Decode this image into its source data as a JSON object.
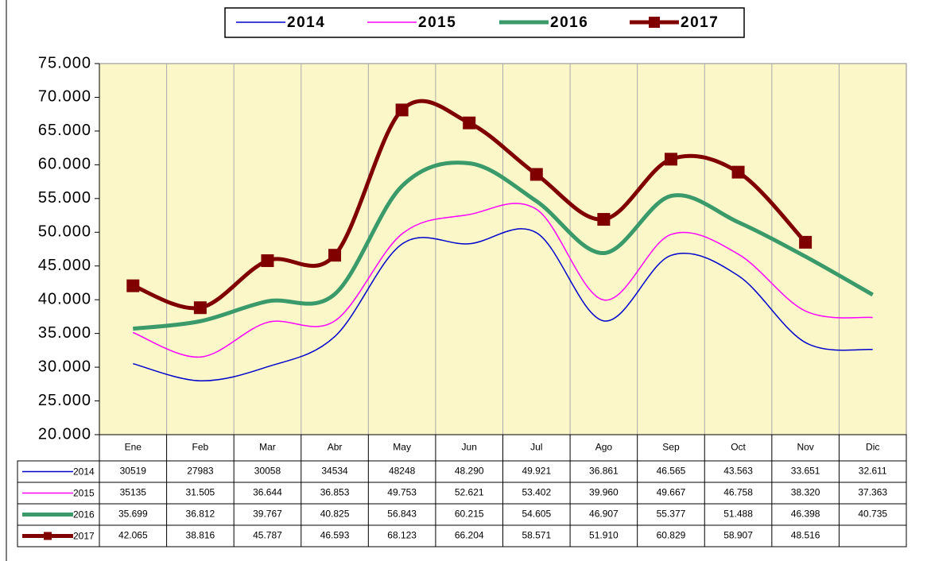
{
  "chart_data": {
    "type": "line",
    "categories": [
      "Ene",
      "Feb",
      "Mar",
      "Abr",
      "May",
      "Jun",
      "Jul",
      "Ago",
      "Sep",
      "Oct",
      "Nov",
      "Dic"
    ],
    "series": [
      {
        "name": "2014",
        "color": "#0000cc",
        "width": 1.5,
        "values": [
          30519,
          27983,
          30058,
          34534,
          48248,
          48290,
          49921,
          36861,
          46565,
          43563,
          33651,
          32611
        ],
        "value_labels": [
          "30519",
          "27983",
          "30058",
          "34534",
          "48248",
          "48.290",
          "49.921",
          "36.861",
          "46.565",
          "43.563",
          "33.651",
          "32.611"
        ]
      },
      {
        "name": "2015",
        "color": "#ff00ff",
        "width": 1.5,
        "values": [
          35135,
          31505,
          36644,
          36853,
          49753,
          52621,
          53402,
          39960,
          49667,
          46758,
          38320,
          37363
        ],
        "value_labels": [
          "35135",
          "31.505",
          "36.644",
          "36.853",
          "49.753",
          "52.621",
          "53.402",
          "39.960",
          "49.667",
          "46.758",
          "38.320",
          "37.363"
        ]
      },
      {
        "name": "2016",
        "color": "#3a9a6a",
        "width": 5,
        "values": [
          35699,
          36812,
          39767,
          40825,
          56843,
          60215,
          54605,
          46907,
          55377,
          51488,
          46398,
          40735
        ],
        "value_labels": [
          "35.699",
          "36.812",
          "39.767",
          "40.825",
          "56.843",
          "60.215",
          "54.605",
          "46.907",
          "55.377",
          "51.488",
          "46.398",
          "40.735"
        ]
      },
      {
        "name": "2017",
        "color": "#800000",
        "width": 5,
        "marker": "square",
        "values": [
          42065,
          38816,
          45787,
          46593,
          68123,
          66204,
          58571,
          51910,
          60829,
          58907,
          48516,
          null
        ],
        "value_labels": [
          "42.065",
          "38.816",
          "45.787",
          "46.593",
          "68.123",
          "66.204",
          "58.571",
          "51.910",
          "60.829",
          "58.907",
          "48.516",
          null
        ]
      }
    ],
    "ylim": [
      20000,
      75000
    ],
    "yticks": [
      {
        "value": 20000,
        "label": "20.000"
      },
      {
        "value": 25000,
        "label": "25.000"
      },
      {
        "value": 30000,
        "label": "30.000"
      },
      {
        "value": 35000,
        "label": "35.000"
      },
      {
        "value": 40000,
        "label": "40.000"
      },
      {
        "value": 45000,
        "label": "45.000"
      },
      {
        "value": 50000,
        "label": "50.000"
      },
      {
        "value": 55000,
        "label": "55.000"
      },
      {
        "value": 60000,
        "label": "60.000"
      },
      {
        "value": 65000,
        "label": "65.000"
      },
      {
        "value": 70000,
        "label": "70.000"
      },
      {
        "value": 75000,
        "label": "75.000"
      }
    ],
    "grid": "vertical",
    "background": "#fcf7c9",
    "legend": "top"
  }
}
